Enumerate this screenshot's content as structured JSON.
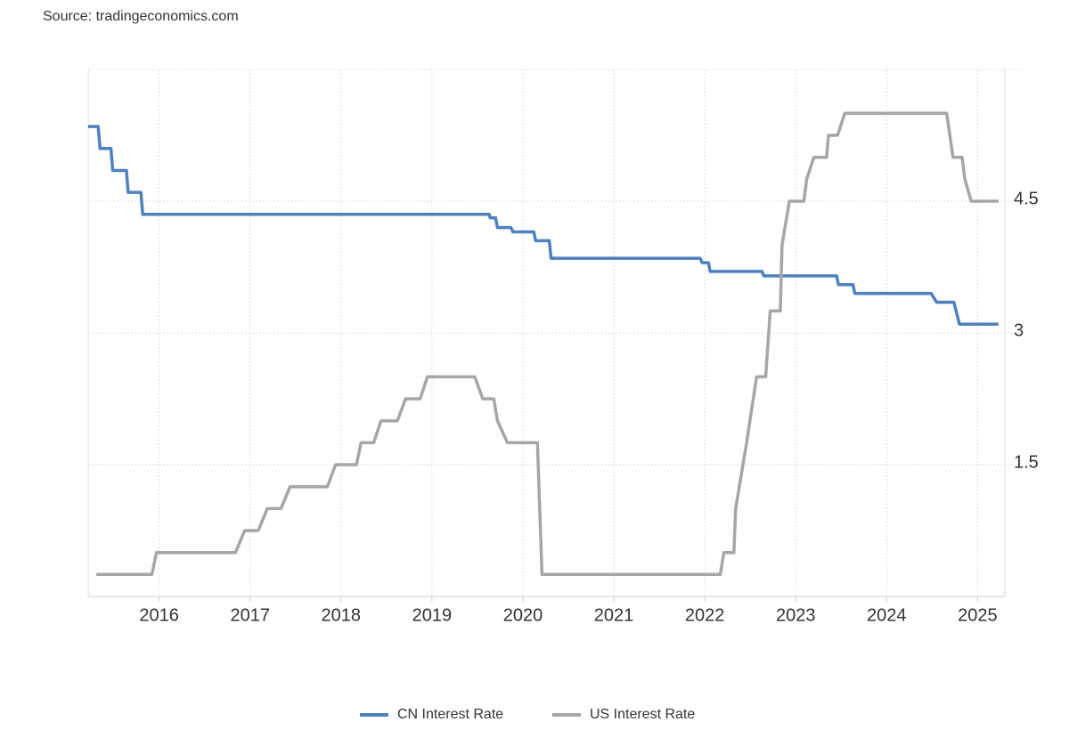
{
  "chart_data": {
    "type": "line",
    "source": "Source: tradingeconomics.com",
    "xlim": [
      2015.22,
      2025.3
    ],
    "xticks": [
      2016,
      2017,
      2018,
      2019,
      2020,
      2021,
      2022,
      2023,
      2024,
      2025
    ],
    "ylim": [
      0,
      6
    ],
    "yticks": [
      1.5,
      3,
      4.5
    ],
    "grid": true,
    "legend": "bottom",
    "series": [
      {
        "name": "CN Interest Rate",
        "color": "#4e81bd",
        "x": [
          2015.22,
          2015.33,
          2015.35,
          2015.47,
          2015.49,
          2015.64,
          2015.66,
          2015.8,
          2015.82,
          2019.63,
          2019.64,
          2019.7,
          2019.72,
          2019.87,
          2019.89,
          2020.12,
          2020.14,
          2020.29,
          2020.31,
          2021.95,
          2021.97,
          2022.04,
          2022.06,
          2022.63,
          2022.65,
          2023.45,
          2023.47,
          2023.63,
          2023.65,
          2024.49,
          2024.55,
          2024.74,
          2024.8,
          2025.23
        ],
        "values": [
          5.35,
          5.35,
          5.1,
          5.1,
          4.85,
          4.85,
          4.6,
          4.6,
          4.35,
          4.35,
          4.31,
          4.31,
          4.2,
          4.2,
          4.15,
          4.15,
          4.05,
          4.05,
          3.85,
          3.85,
          3.8,
          3.8,
          3.7,
          3.7,
          3.65,
          3.65,
          3.55,
          3.55,
          3.45,
          3.45,
          3.35,
          3.35,
          3.1,
          3.1
        ]
      },
      {
        "name": "US Interest Rate",
        "color": "#a6a6a6",
        "x": [
          2015.31,
          2015.92,
          2015.97,
          2016.84,
          2016.94,
          2017.09,
          2017.19,
          2017.34,
          2017.44,
          2017.85,
          2017.94,
          2018.17,
          2018.22,
          2018.36,
          2018.44,
          2018.62,
          2018.71,
          2018.87,
          2018.95,
          2019.47,
          2019.56,
          2019.68,
          2019.72,
          2019.83,
          2020.16,
          2020.21,
          2022.17,
          2022.21,
          2022.32,
          2022.34,
          2022.46,
          2022.57,
          2022.67,
          2022.72,
          2022.83,
          2022.85,
          2022.93,
          2023.09,
          2023.12,
          2023.2,
          2023.34,
          2023.36,
          2023.46,
          2023.54,
          2024.66,
          2024.73,
          2024.83,
          2024.86,
          2024.93,
          2025.23
        ],
        "values": [
          0.25,
          0.25,
          0.5,
          0.5,
          0.75,
          0.75,
          1.0,
          1.0,
          1.25,
          1.25,
          1.5,
          1.5,
          1.75,
          1.75,
          2.0,
          2.0,
          2.25,
          2.25,
          2.5,
          2.5,
          2.25,
          2.25,
          2.0,
          1.75,
          1.75,
          0.25,
          0.25,
          0.5,
          0.5,
          1.0,
          1.75,
          2.5,
          2.5,
          3.25,
          3.25,
          4.0,
          4.5,
          4.5,
          4.75,
          5.0,
          5.0,
          5.25,
          5.25,
          5.5,
          5.5,
          5.0,
          5.0,
          4.75,
          4.5,
          4.5
        ]
      }
    ]
  }
}
